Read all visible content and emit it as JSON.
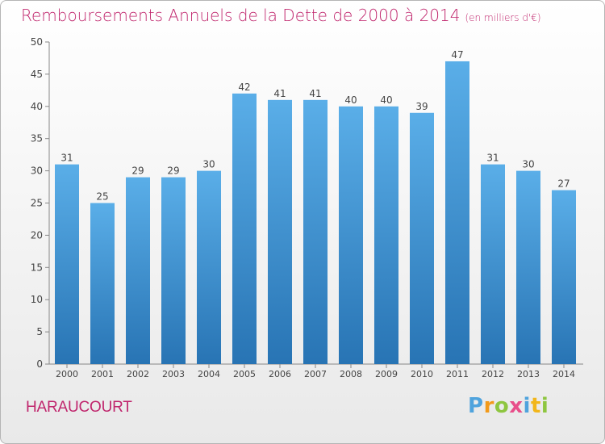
{
  "title": "Remboursements Annuels de la Dette de 2000 à 2014",
  "unit": "(en milliers d'€)",
  "place": "HARAUCOURT",
  "logo": {
    "text": "Proxiti",
    "colors": [
      "#4fa3dd",
      "#f29a1a",
      "#8ec640",
      "#e84e8a",
      "#4fa3dd",
      "#f2b61a",
      "#8ec640"
    ]
  },
  "colors": {
    "title": "#c0266d",
    "bar_top": "#5aaee8",
    "bar_bottom": "#2874b4"
  },
  "chart_data": {
    "type": "bar",
    "title": "Remboursements Annuels de la Dette de 2000 à 2014",
    "xlabel": "",
    "ylabel": "",
    "categories": [
      "2000",
      "2001",
      "2002",
      "2003",
      "2004",
      "2005",
      "2006",
      "2007",
      "2008",
      "2009",
      "2010",
      "2011",
      "2012",
      "2013",
      "2014"
    ],
    "values": [
      31,
      25,
      29,
      29,
      30,
      42,
      41,
      41,
      40,
      40,
      39,
      47,
      31,
      30,
      27
    ],
    "ylim": [
      0,
      50
    ],
    "yticks": [
      0,
      5,
      10,
      15,
      20,
      25,
      30,
      35,
      40,
      45,
      50
    ],
    "grid": false,
    "data_labels": true
  }
}
